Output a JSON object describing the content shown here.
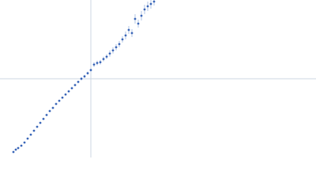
{
  "chart_data": {
    "type": "scatter",
    "x": [
      -98,
      -95,
      -92,
      -88,
      -84,
      -80,
      -76,
      -72,
      -68,
      -64,
      -60,
      -56,
      -52,
      -48,
      -44,
      -40,
      -36,
      -32,
      -28,
      -24,
      -20,
      -16,
      -12,
      -8,
      -4,
      0,
      4,
      8,
      12,
      16,
      20,
      24,
      28,
      32,
      36,
      40,
      44,
      48,
      52,
      56,
      60,
      64,
      68,
      72,
      76,
      80
    ],
    "values": [
      -93,
      -90,
      -88,
      -85,
      -81,
      -76,
      -71,
      -66,
      -61,
      -56,
      -51,
      -46,
      -41,
      -37,
      -32,
      -28,
      -24,
      -20,
      -16,
      -12,
      -8,
      -4,
      0,
      3,
      7,
      11,
      18,
      20,
      21,
      25,
      28,
      32,
      36,
      40,
      44,
      50,
      55,
      62,
      58,
      76,
      70,
      80,
      88,
      92,
      95,
      98
    ],
    "errors": [
      1,
      1,
      1,
      1,
      1,
      1,
      1,
      1,
      1,
      1,
      1,
      1,
      1,
      1,
      1,
      1,
      1,
      1.5,
      1.5,
      1.5,
      1.5,
      1.5,
      2,
      2,
      2,
      2,
      3,
      3,
      3,
      3,
      3,
      4,
      4,
      4,
      4,
      4,
      5,
      5,
      5,
      6,
      5,
      6,
      6,
      6,
      6,
      5
    ],
    "color": "#3a66b8",
    "error_color": "#9fb6de",
    "xlim": [
      -115,
      285
    ],
    "ylim": [
      -100,
      100
    ]
  }
}
